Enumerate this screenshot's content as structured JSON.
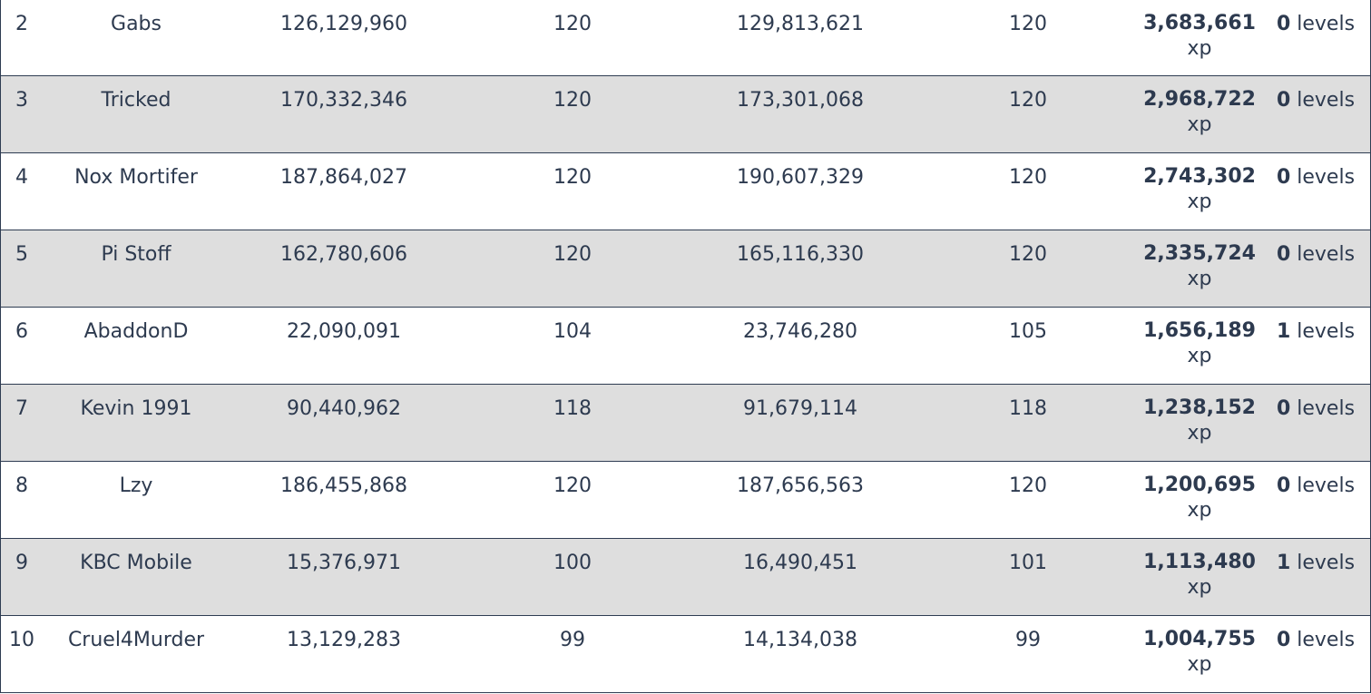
{
  "rows": [
    {
      "rank": "2",
      "name": "Gabs",
      "start_xp": "126,129,960",
      "start_level": "120",
      "end_xp": "129,813,621",
      "end_level": "120",
      "xp_gained": "3,683,661",
      "xp_unit": "xp",
      "levels_gained": "0",
      "levels_unit": "levels"
    },
    {
      "rank": "3",
      "name": "Tricked",
      "start_xp": "170,332,346",
      "start_level": "120",
      "end_xp": "173,301,068",
      "end_level": "120",
      "xp_gained": "2,968,722",
      "xp_unit": "xp",
      "levels_gained": "0",
      "levels_unit": "levels"
    },
    {
      "rank": "4",
      "name": "Nox Mortifer",
      "start_xp": "187,864,027",
      "start_level": "120",
      "end_xp": "190,607,329",
      "end_level": "120",
      "xp_gained": "2,743,302",
      "xp_unit": "xp",
      "levels_gained": "0",
      "levels_unit": "levels"
    },
    {
      "rank": "5",
      "name": "Pi Stoff",
      "start_xp": "162,780,606",
      "start_level": "120",
      "end_xp": "165,116,330",
      "end_level": "120",
      "xp_gained": "2,335,724",
      "xp_unit": "xp",
      "levels_gained": "0",
      "levels_unit": "levels"
    },
    {
      "rank": "6",
      "name": "AbaddonD",
      "start_xp": "22,090,091",
      "start_level": "104",
      "end_xp": "23,746,280",
      "end_level": "105",
      "xp_gained": "1,656,189",
      "xp_unit": "xp",
      "levels_gained": "1",
      "levels_unit": "levels"
    },
    {
      "rank": "7",
      "name": "Kevin 1991",
      "start_xp": "90,440,962",
      "start_level": "118",
      "end_xp": "91,679,114",
      "end_level": "118",
      "xp_gained": "1,238,152",
      "xp_unit": "xp",
      "levels_gained": "0",
      "levels_unit": "levels"
    },
    {
      "rank": "8",
      "name": "Lzy",
      "start_xp": "186,455,868",
      "start_level": "120",
      "end_xp": "187,656,563",
      "end_level": "120",
      "xp_gained": "1,200,695",
      "xp_unit": "xp",
      "levels_gained": "0",
      "levels_unit": "levels"
    },
    {
      "rank": "9",
      "name": "KBC Mobile",
      "start_xp": "15,376,971",
      "start_level": "100",
      "end_xp": "16,490,451",
      "end_level": "101",
      "xp_gained": "1,113,480",
      "xp_unit": "xp",
      "levels_gained": "1",
      "levels_unit": "levels"
    },
    {
      "rank": "10",
      "name": "Cruel4Murder",
      "start_xp": "13,129,283",
      "start_level": "99",
      "end_xp": "14,134,038",
      "end_level": "99",
      "xp_gained": "1,004,755",
      "xp_unit": "xp",
      "levels_gained": "0",
      "levels_unit": "levels"
    }
  ]
}
